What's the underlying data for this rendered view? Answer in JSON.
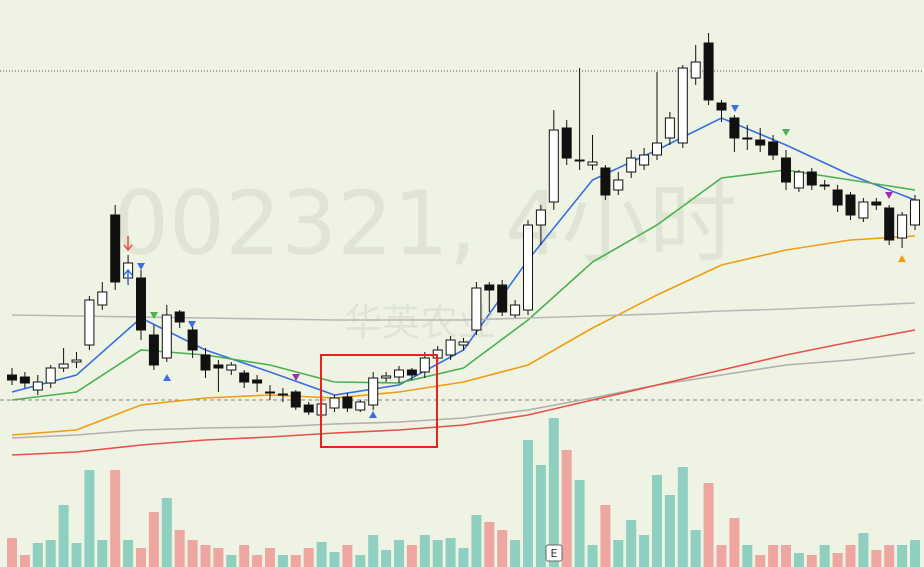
{
  "chart_data": {
    "type": "candlestick",
    "watermark": "002321, 4小时",
    "watermark_name": "华英农业",
    "button": "E",
    "ylim": [
      0,
      500
    ],
    "vlim": [
      0,
      160
    ],
    "up_color": "#ffffff",
    "down_color": "#111111",
    "volume_up_color": "#8ecfc0",
    "volume_down_color": "#eea7a0",
    "open": [
      125,
      123,
      110,
      117,
      132,
      138,
      155,
      195,
      285,
      222,
      222,
      165,
      142,
      188,
      170,
      145,
      135,
      130,
      127,
      120,
      108,
      105,
      108,
      95,
      85,
      92,
      103,
      90,
      95,
      122,
      123,
      130,
      128,
      142,
      145,
      155,
      170,
      215,
      215,
      185,
      190,
      275,
      298,
      372,
      340,
      335,
      332,
      310,
      328,
      335,
      345,
      362,
      357,
      422,
      457,
      397,
      382,
      362,
      360,
      358,
      342,
      312,
      328,
      315,
      310,
      305,
      282,
      298,
      292,
      262,
      275
    ],
    "close": [
      120,
      117,
      118,
      132,
      136,
      140,
      200,
      208,
      218,
      237,
      170,
      135,
      185,
      178,
      150,
      130,
      132,
      135,
      118,
      117,
      107,
      106,
      93,
      88,
      96,
      102,
      92,
      98,
      122,
      124,
      130,
      125,
      142,
      150,
      160,
      158,
      212,
      210,
      188,
      195,
      275,
      290,
      370,
      342,
      340,
      338,
      305,
      320,
      342,
      345,
      357,
      382,
      432,
      438,
      400,
      390,
      362,
      362,
      355,
      345,
      318,
      328,
      315,
      315,
      295,
      285,
      298,
      295,
      260,
      285,
      300
    ],
    "high": [
      132,
      128,
      125,
      135,
      152,
      148,
      204,
      218,
      295,
      245,
      230,
      175,
      195,
      190,
      175,
      152,
      140,
      138,
      130,
      125,
      115,
      112,
      110,
      98,
      105,
      105,
      107,
      100,
      128,
      128,
      134,
      132,
      148,
      154,
      164,
      162,
      218,
      218,
      220,
      200,
      280,
      295,
      390,
      380,
      432,
      365,
      335,
      328,
      350,
      352,
      428,
      388,
      435,
      455,
      467,
      400,
      385,
      375,
      372,
      365,
      350,
      330,
      332,
      320,
      315,
      308,
      302,
      302,
      295,
      288,
      305
    ],
    "low": [
      115,
      112,
      105,
      112,
      128,
      132,
      150,
      190,
      210,
      215,
      160,
      130,
      138,
      172,
      142,
      122,
      108,
      125,
      112,
      108,
      100,
      98,
      90,
      85,
      82,
      88,
      88,
      88,
      90,
      118,
      117,
      120,
      122,
      138,
      140,
      150,
      165,
      188,
      184,
      182,
      185,
      255,
      290,
      335,
      330,
      330,
      300,
      305,
      322,
      330,
      340,
      355,
      352,
      415,
      395,
      378,
      348,
      350,
      348,
      340,
      310,
      308,
      310,
      310,
      288,
      280,
      278,
      290,
      255,
      252,
      270
    ],
    "volume": [
      29,
      12,
      24,
      27,
      62,
      24,
      97,
      27,
      97,
      27,
      19,
      55,
      69,
      37,
      27,
      22,
      19,
      12,
      22,
      12,
      19,
      12,
      12,
      19,
      25,
      15,
      22,
      12,
      32,
      17,
      27,
      22,
      32,
      27,
      29,
      19,
      52,
      45,
      37,
      27,
      127,
      102,
      149,
      117,
      87,
      22,
      62,
      27,
      47,
      32,
      92,
      72,
      100,
      37,
      84,
      22,
      49,
      22,
      12,
      22,
      22,
      14,
      12,
      22,
      14,
      22,
      34,
      17,
      22,
      22,
      27
    ],
    "ma_x": [
      0,
      5,
      10,
      15,
      20,
      25,
      30,
      35,
      40,
      45,
      50,
      55,
      60,
      65,
      70
    ],
    "series": [
      {
        "color": "#3a6fe0",
        "values": [
          108,
          125,
          182,
          150,
          128,
          105,
          115,
          150,
          240,
          320,
          350,
          382,
          355,
          325,
          300
        ]
      },
      {
        "color": "#4caf50",
        "values": [
          100,
          108,
          150,
          145,
          135,
          118,
          117,
          132,
          180,
          238,
          275,
          322,
          330,
          320,
          310
        ]
      },
      {
        "color": "#f39c12",
        "values": [
          65,
          70,
          95,
          102,
          105,
          102,
          108,
          118,
          135,
          172,
          205,
          235,
          250,
          260,
          264
        ]
      },
      {
        "color": "#b0b0b0",
        "values": [
          62,
          65,
          70,
          72,
          73,
          76,
          78,
          82,
          90,
          102,
          115,
          125,
          135,
          140,
          147
        ]
      },
      {
        "color": "#e8504a",
        "values": [
          45,
          48,
          55,
          60,
          63,
          67,
          70,
          75,
          85,
          100,
          115,
          130,
          145,
          158,
          170
        ]
      },
      {
        "color": "#b8b8b8",
        "values": [
          185,
          184,
          183,
          182,
          181,
          180,
          180,
          180,
          182,
          184,
          186,
          189,
          191,
          194,
          197
        ]
      }
    ]
  }
}
